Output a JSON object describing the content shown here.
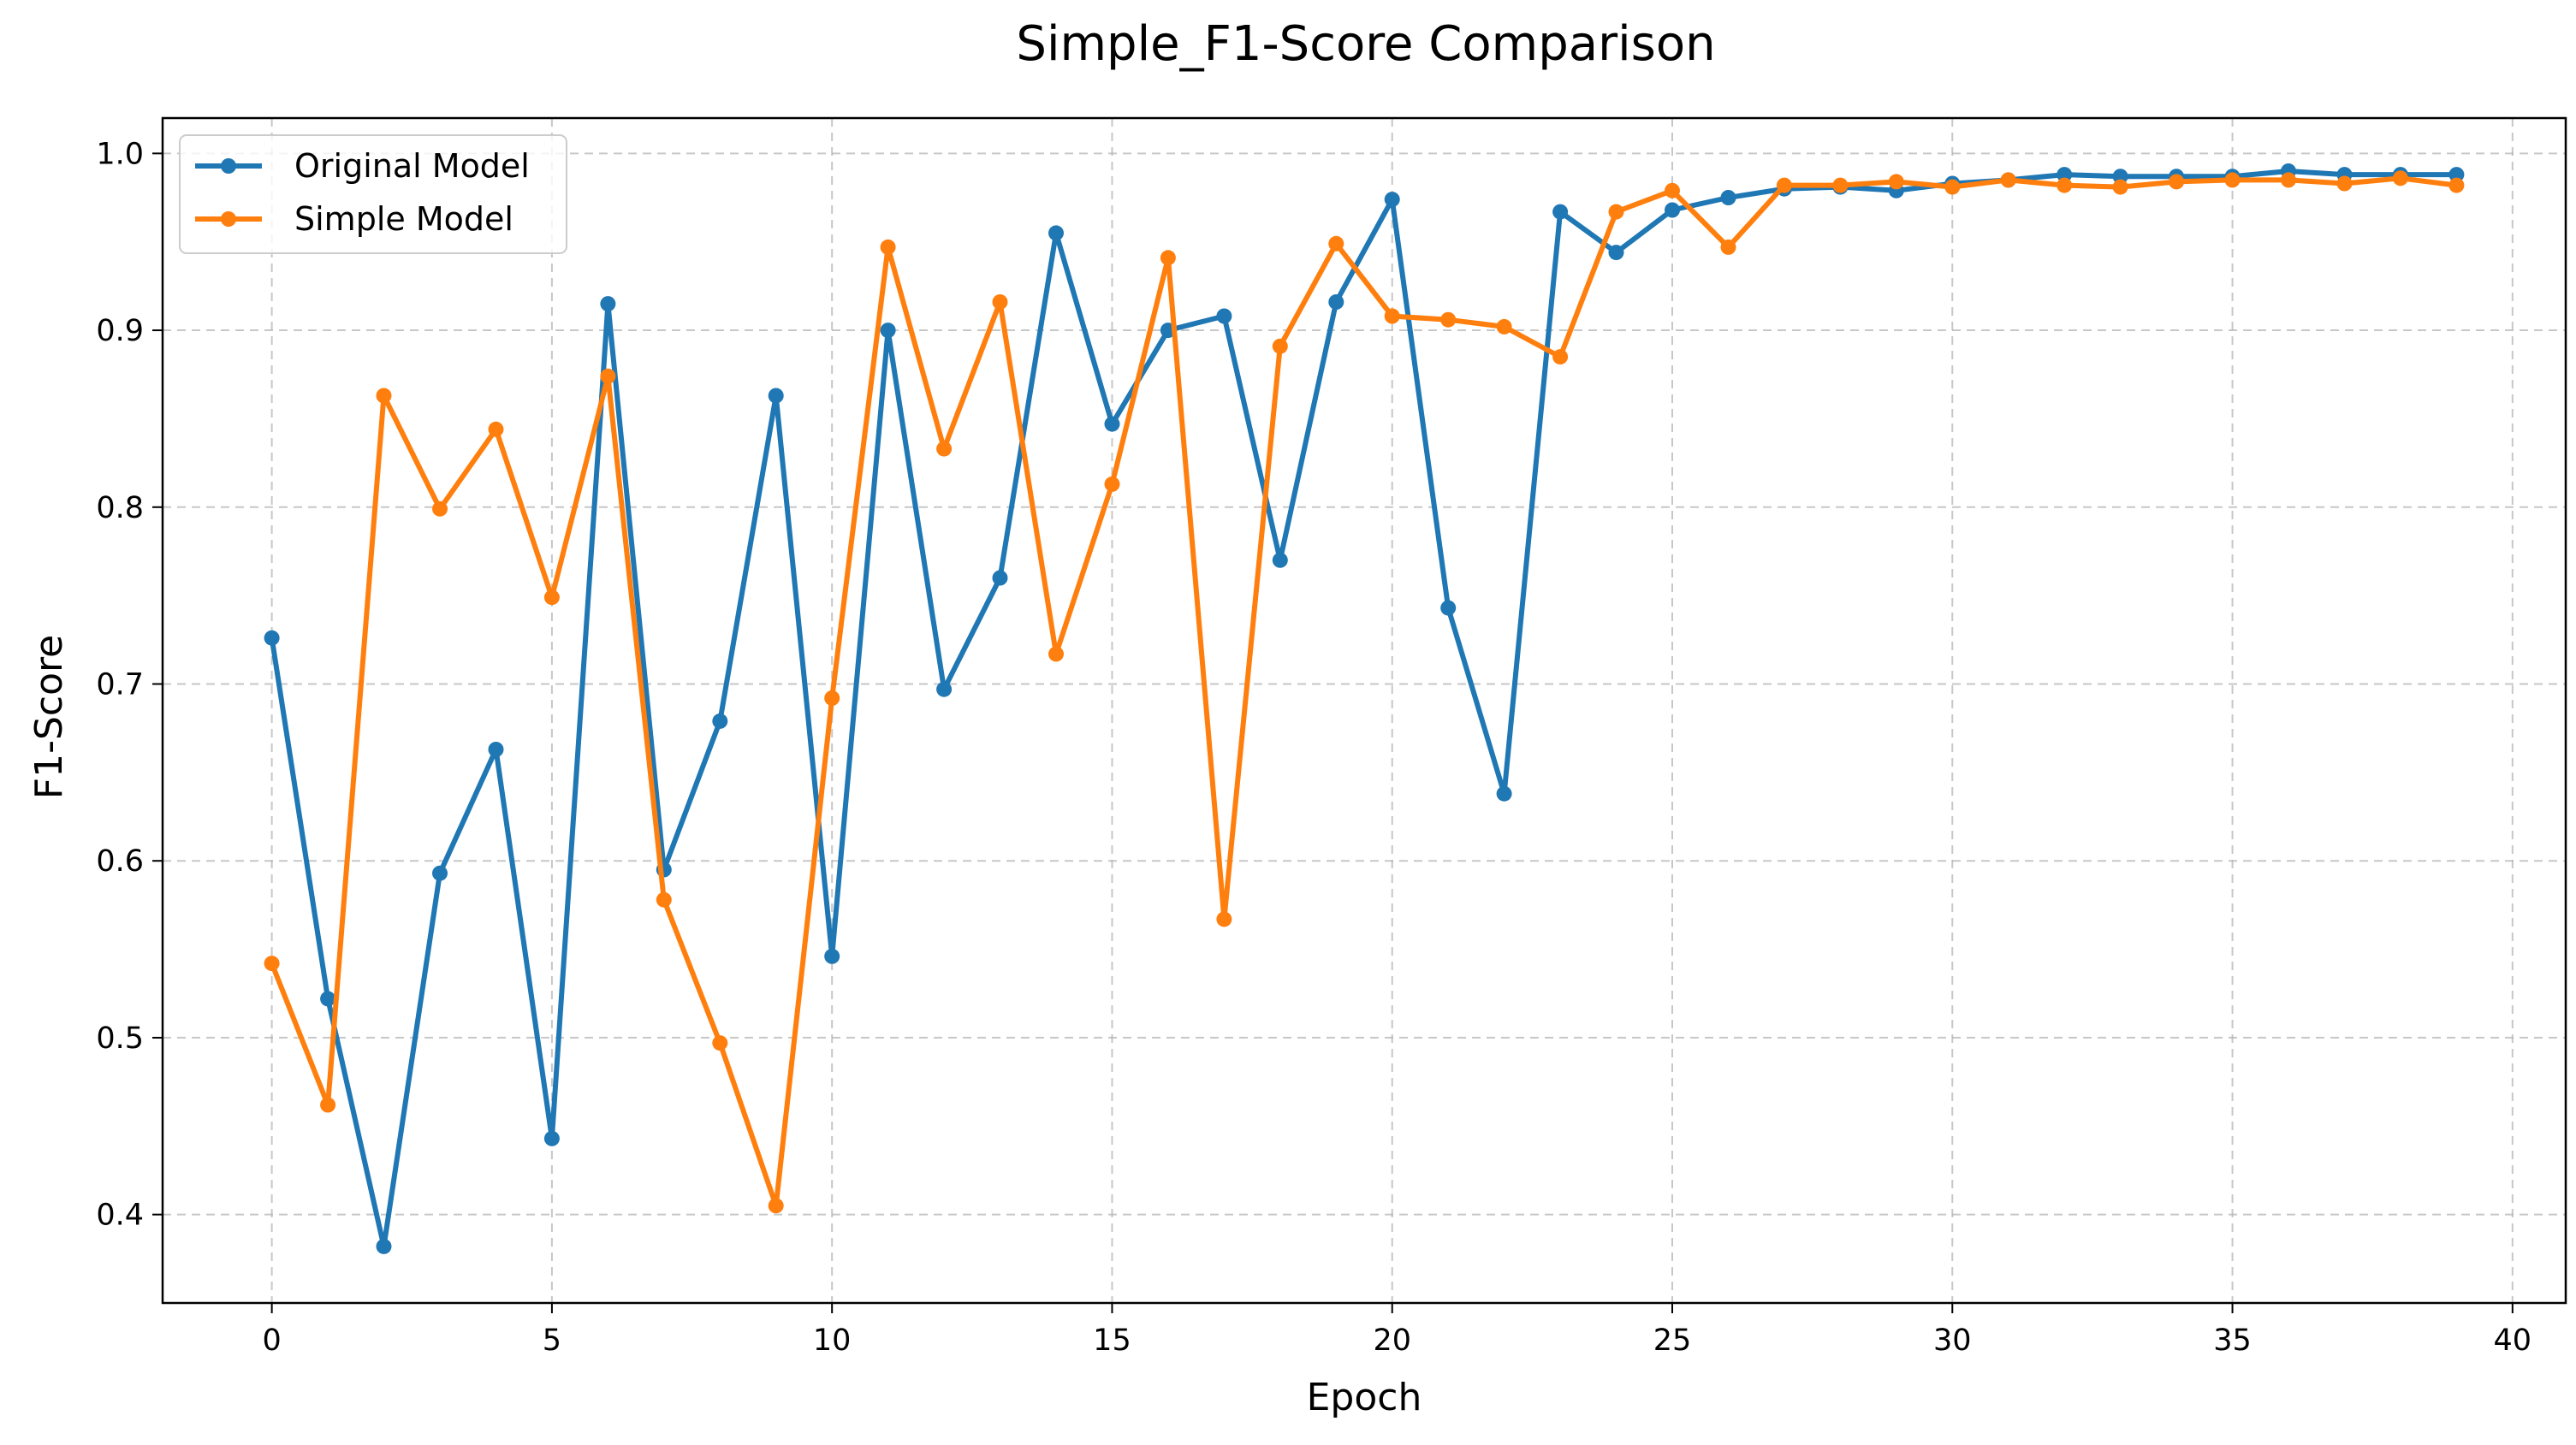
{
  "chart_data": {
    "type": "line",
    "title": "Simple_F1-Score Comparison",
    "xlabel": "Epoch",
    "ylabel": "F1-Score",
    "xlim": [
      -1.95,
      40.95
    ],
    "ylim": [
      0.35,
      1.02
    ],
    "xticks": [
      0,
      5,
      10,
      15,
      20,
      25,
      30,
      35,
      40
    ],
    "xtick_labels": [
      "0",
      "5",
      "10",
      "15",
      "20",
      "25",
      "30",
      "35",
      "40"
    ],
    "yticks": [
      0.4,
      0.5,
      0.6,
      0.7,
      0.8,
      0.9,
      1.0
    ],
    "ytick_labels": [
      "0.4",
      "0.5",
      "0.6",
      "0.7",
      "0.8",
      "0.9",
      "1.0"
    ],
    "grid": true,
    "legend_position": "upper-left",
    "x": [
      0,
      1,
      2,
      3,
      4,
      5,
      6,
      7,
      8,
      9,
      10,
      11,
      12,
      13,
      14,
      15,
      16,
      17,
      18,
      19,
      20,
      21,
      22,
      23,
      24,
      25,
      26,
      27,
      28,
      29,
      30,
      31,
      32,
      33,
      34,
      35,
      36,
      37,
      38,
      39
    ],
    "series": [
      {
        "name": "Original Model",
        "color": "#1f77b4",
        "values": [
          0.726,
          0.522,
          0.382,
          0.593,
          0.663,
          0.443,
          0.915,
          0.595,
          0.679,
          0.863,
          0.546,
          0.9,
          0.697,
          0.76,
          0.955,
          0.847,
          0.9,
          0.908,
          0.77,
          0.916,
          0.974,
          0.743,
          0.638,
          0.967,
          0.944,
          0.968,
          0.975,
          0.98,
          0.981,
          0.979,
          0.983,
          0.985,
          0.988,
          0.987,
          0.987,
          0.987,
          0.99,
          0.988,
          0.988,
          0.988
        ]
      },
      {
        "name": "Simple Model",
        "color": "#ff7f0e",
        "values": [
          0.542,
          0.462,
          0.863,
          0.799,
          0.844,
          0.749,
          0.874,
          0.578,
          0.497,
          0.405,
          0.692,
          0.947,
          0.833,
          0.916,
          0.717,
          0.813,
          0.941,
          0.567,
          0.891,
          0.949,
          0.908,
          0.906,
          0.902,
          0.885,
          0.967,
          0.979,
          0.947,
          0.982,
          0.982,
          0.984,
          0.981,
          0.985,
          0.982,
          0.981,
          0.984,
          0.985,
          0.985,
          0.983,
          0.986,
          0.982
        ]
      }
    ]
  }
}
